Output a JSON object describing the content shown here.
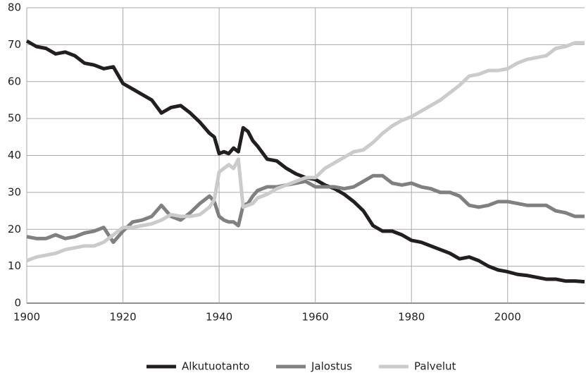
{
  "chart_data": {
    "type": "line",
    "x": [
      1900,
      1902,
      1904,
      1906,
      1908,
      1910,
      1912,
      1914,
      1916,
      1918,
      1920,
      1922,
      1924,
      1926,
      1928,
      1930,
      1932,
      1934,
      1936,
      1938,
      1939,
      1940,
      1941,
      1942,
      1943,
      1944,
      1945,
      1946,
      1947,
      1948,
      1950,
      1952,
      1954,
      1956,
      1958,
      1960,
      1962,
      1964,
      1966,
      1968,
      1970,
      1972,
      1974,
      1976,
      1978,
      1980,
      1982,
      1984,
      1986,
      1988,
      1990,
      1992,
      1994,
      1996,
      1998,
      2000,
      2002,
      2004,
      2006,
      2008,
      2010,
      2012,
      2014,
      2016
    ],
    "series": [
      {
        "name": "Alkutuotanto",
        "color": "#231f20",
        "values": [
          71,
          69.5,
          69,
          67.5,
          68,
          67,
          65,
          64.5,
          63.5,
          64,
          59.5,
          58,
          56.5,
          55,
          51.5,
          53,
          53.5,
          51.5,
          49,
          46,
          45,
          40.5,
          41,
          40.5,
          42,
          41,
          47.5,
          46.5,
          44,
          42.5,
          39,
          38.5,
          36.5,
          35,
          34,
          33.5,
          32,
          31,
          29.5,
          27.5,
          25,
          21,
          19.5,
          19.5,
          18.5,
          17,
          16.5,
          15.5,
          14.5,
          13.5,
          12,
          12.5,
          11.5,
          10,
          9,
          8.5,
          7.8,
          7.5,
          7,
          6.5,
          6.5,
          6,
          6,
          5.8
        ]
      },
      {
        "name": "Jalostus",
        "color": "#808080",
        "values": [
          18,
          17.5,
          17.5,
          18.5,
          17.5,
          18,
          19,
          19.5,
          20.5,
          16.5,
          19.5,
          22,
          22.5,
          23.5,
          26.5,
          23.5,
          22.5,
          24.5,
          27,
          29,
          27.5,
          23.5,
          22.5,
          22,
          22,
          21,
          26.5,
          27,
          29,
          30.5,
          31.5,
          31.5,
          32,
          32.5,
          33,
          31.5,
          31.5,
          31.5,
          31,
          31.5,
          33,
          34.5,
          34.5,
          32.5,
          32,
          32.5,
          31.5,
          31,
          30,
          30,
          29,
          26.5,
          26,
          26.5,
          27.5,
          27.5,
          27,
          26.5,
          26.5,
          26.5,
          25,
          24.5,
          23.5,
          23.5
        ]
      },
      {
        "name": "Palvelut",
        "color": "#cbcbcb",
        "values": [
          11.5,
          12.5,
          13,
          13.5,
          14.5,
          15,
          15.5,
          15.5,
          16.5,
          18.5,
          20.5,
          20.5,
          21,
          21.5,
          22.5,
          24,
          23.5,
          23.5,
          24,
          26,
          28,
          35.5,
          36.5,
          37.5,
          36.5,
          39,
          26,
          26.5,
          27,
          28.5,
          29.5,
          31,
          32,
          33,
          34,
          34,
          36.5,
          38,
          39.5,
          41,
          41.5,
          43.5,
          46,
          48,
          49.5,
          50.5,
          52,
          53.5,
          55,
          57,
          59,
          61.5,
          62,
          63,
          63,
          63.5,
          65,
          66,
          66.5,
          67,
          69,
          69.5,
          70.5,
          70.5
        ]
      }
    ],
    "xlim": [
      1900,
      2016
    ],
    "xticks": [
      1900,
      1920,
      1940,
      1960,
      1980,
      2000
    ],
    "ylim": [
      0,
      80
    ],
    "yticks": [
      0,
      10,
      20,
      30,
      40,
      50,
      60,
      70,
      80
    ],
    "grid": true
  }
}
